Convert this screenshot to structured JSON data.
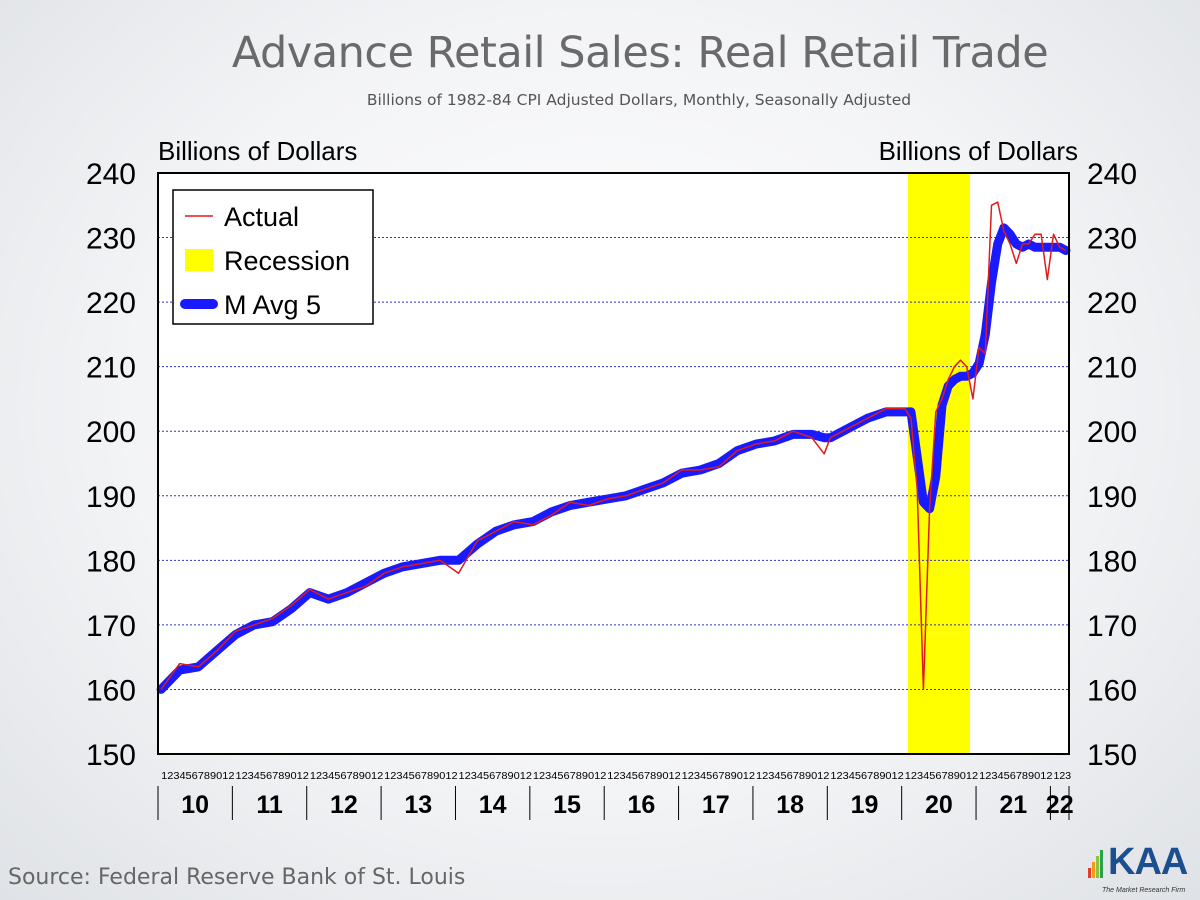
{
  "header": {
    "title": "Advance Retail Sales: Real Retail Trade",
    "subtitle": "Billions of 1982-84 CPI Adjusted Dollars, Monthly, Seasonally Adjusted"
  },
  "footer": {
    "source": "Source: Federal Reserve Bank of St. Louis",
    "logo_text": "KAA",
    "logo_tagline": "The Market Research Firm"
  },
  "chart_data": {
    "type": "line",
    "ylabel_left": "Billions of Dollars",
    "ylabel_right": "Billions of Dollars",
    "ylim": [
      150,
      240
    ],
    "yticks": [
      150,
      160,
      170,
      180,
      190,
      200,
      210,
      220,
      230,
      240
    ],
    "grid": "horizontal dotted",
    "legend_position": "top-left",
    "legend": [
      {
        "label": "Actual",
        "color": "#e01b1b",
        "style": "thin line"
      },
      {
        "label": "Recession",
        "color": "#ffff00",
        "style": "band"
      },
      {
        "label": "M Avg 5",
        "color": "#1a1aff",
        "style": "thick line"
      }
    ],
    "x_month_labels": "123456789012 repeated per year, 123 for 22",
    "year_labels": [
      "10",
      "11",
      "12",
      "13",
      "14",
      "15",
      "16",
      "17",
      "18",
      "19",
      "20",
      "21",
      "22"
    ],
    "recession": {
      "start": "2020-02",
      "end": "2020-11"
    },
    "series": [
      {
        "name": "Actual",
        "color": "#e01b1b",
        "points": [
          [
            "2010-01",
            160
          ],
          [
            "2010-04",
            164
          ],
          [
            "2010-07",
            163.5
          ],
          [
            "2010-10",
            166
          ],
          [
            "2011-01",
            169
          ],
          [
            "2011-04",
            170
          ],
          [
            "2011-07",
            171
          ],
          [
            "2011-10",
            173
          ],
          [
            "2012-01",
            175.5
          ],
          [
            "2012-04",
            174
          ],
          [
            "2012-07",
            175
          ],
          [
            "2012-10",
            176
          ],
          [
            "2013-01",
            178
          ],
          [
            "2013-04",
            179
          ],
          [
            "2013-07",
            179.5
          ],
          [
            "2013-10",
            180
          ],
          [
            "2014-01",
            178
          ],
          [
            "2014-04",
            183
          ],
          [
            "2014-07",
            184.5
          ],
          [
            "2014-10",
            186
          ],
          [
            "2015-01",
            185.5
          ],
          [
            "2015-04",
            187
          ],
          [
            "2015-07",
            189
          ],
          [
            "2015-10",
            188.5
          ],
          [
            "2016-01",
            189.5
          ],
          [
            "2016-04",
            190
          ],
          [
            "2016-07",
            191
          ],
          [
            "2016-10",
            192
          ],
          [
            "2017-01",
            194
          ],
          [
            "2017-04",
            194
          ],
          [
            "2017-07",
            194.5
          ],
          [
            "2017-10",
            197
          ],
          [
            "2018-01",
            198
          ],
          [
            "2018-04",
            198.5
          ],
          [
            "2018-07",
            200
          ],
          [
            "2018-10",
            199
          ],
          [
            "2018-12",
            196.5
          ],
          [
            "2019-01",
            199
          ],
          [
            "2019-04",
            200.5
          ],
          [
            "2019-07",
            202
          ],
          [
            "2019-10",
            203.5
          ],
          [
            "2020-01",
            203.5
          ],
          [
            "2020-02",
            202
          ],
          [
            "2020-03",
            191
          ],
          [
            "2020-04",
            160
          ],
          [
            "2020-05",
            188
          ],
          [
            "2020-06",
            203
          ],
          [
            "2020-07",
            205
          ],
          [
            "2020-08",
            208
          ],
          [
            "2020-09",
            210
          ],
          [
            "2020-10",
            211
          ],
          [
            "2020-11",
            210
          ],
          [
            "2020-12",
            205
          ],
          [
            "2021-01",
            213
          ],
          [
            "2021-02",
            212
          ],
          [
            "2021-03",
            235
          ],
          [
            "2021-04",
            235.5
          ],
          [
            "2021-05",
            231
          ],
          [
            "2021-06",
            229
          ],
          [
            "2021-07",
            226
          ],
          [
            "2021-08",
            229
          ],
          [
            "2021-09",
            229
          ],
          [
            "2021-10",
            230.5
          ],
          [
            "2021-11",
            230.5
          ],
          [
            "2021-12",
            223.5
          ],
          [
            "2022-01",
            230.5
          ],
          [
            "2022-02",
            228.5
          ],
          [
            "2022-03",
            228
          ]
        ]
      },
      {
        "name": "M Avg 5",
        "color": "#1a1aff",
        "points": [
          [
            "2010-01",
            160
          ],
          [
            "2010-04",
            163
          ],
          [
            "2010-07",
            163.5
          ],
          [
            "2010-10",
            166
          ],
          [
            "2011-01",
            168.5
          ],
          [
            "2011-04",
            170
          ],
          [
            "2011-07",
            170.5
          ],
          [
            "2011-10",
            172.5
          ],
          [
            "2012-01",
            175
          ],
          [
            "2012-04",
            174
          ],
          [
            "2012-07",
            175
          ],
          [
            "2012-10",
            176.5
          ],
          [
            "2013-01",
            178
          ],
          [
            "2013-04",
            179
          ],
          [
            "2013-07",
            179.5
          ],
          [
            "2013-10",
            180
          ],
          [
            "2014-01",
            180
          ],
          [
            "2014-04",
            182.5
          ],
          [
            "2014-07",
            184.5
          ],
          [
            "2014-10",
            185.5
          ],
          [
            "2015-01",
            186
          ],
          [
            "2015-04",
            187.5
          ],
          [
            "2015-07",
            188.5
          ],
          [
            "2015-10",
            189
          ],
          [
            "2016-01",
            189.5
          ],
          [
            "2016-04",
            190
          ],
          [
            "2016-07",
            191
          ],
          [
            "2016-10",
            192
          ],
          [
            "2017-01",
            193.5
          ],
          [
            "2017-04",
            194
          ],
          [
            "2017-07",
            195
          ],
          [
            "2017-10",
            197
          ],
          [
            "2018-01",
            198
          ],
          [
            "2018-04",
            198.5
          ],
          [
            "2018-07",
            199.5
          ],
          [
            "2018-10",
            199.5
          ],
          [
            "2018-12",
            199
          ],
          [
            "2019-01",
            199
          ],
          [
            "2019-04",
            200.5
          ],
          [
            "2019-07",
            202
          ],
          [
            "2019-10",
            203
          ],
          [
            "2020-01",
            203
          ],
          [
            "2020-02",
            203
          ],
          [
            "2020-03",
            196
          ],
          [
            "2020-04",
            189
          ],
          [
            "2020-05",
            188
          ],
          [
            "2020-06",
            193
          ],
          [
            "2020-07",
            204
          ],
          [
            "2020-08",
            207
          ],
          [
            "2020-09",
            208
          ],
          [
            "2020-10",
            208.5
          ],
          [
            "2020-11",
            208.5
          ],
          [
            "2020-12",
            209
          ],
          [
            "2021-01",
            210.5
          ],
          [
            "2021-02",
            215
          ],
          [
            "2021-03",
            223
          ],
          [
            "2021-04",
            229
          ],
          [
            "2021-05",
            231.5
          ],
          [
            "2021-06",
            230.5
          ],
          [
            "2021-07",
            229
          ],
          [
            "2021-08",
            228.5
          ],
          [
            "2021-09",
            229
          ],
          [
            "2021-10",
            228.5
          ],
          [
            "2021-11",
            228.5
          ],
          [
            "2021-12",
            228.5
          ],
          [
            "2022-01",
            228.5
          ],
          [
            "2022-02",
            228.5
          ],
          [
            "2022-03",
            228
          ]
        ]
      }
    ]
  }
}
